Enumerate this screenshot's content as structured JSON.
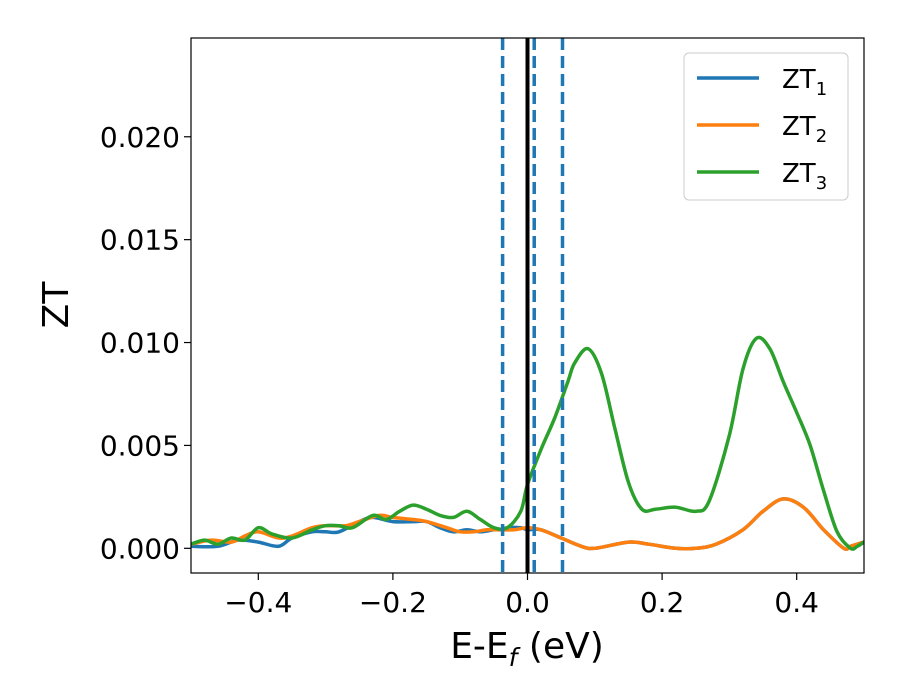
{
  "chart_data": {
    "type": "line",
    "xlabel": "E-E",
    "xlabel_sub": "f",
    "xlabel_unit": " (eV)",
    "ylabel": "ZT",
    "xlim": [
      -0.5,
      0.5
    ],
    "ylim": [
      -0.0012,
      0.0248
    ],
    "xticks": [
      -0.4,
      -0.2,
      0.0,
      0.2,
      0.4
    ],
    "xtick_labels": [
      "−0.4",
      "−0.2",
      "0.0",
      "0.2",
      "0.4"
    ],
    "yticks": [
      0.0,
      0.005,
      0.01,
      0.015,
      0.02
    ],
    "ytick_labels": [
      "0.000",
      "0.005",
      "0.010",
      "0.015",
      "0.020"
    ],
    "grid": false,
    "legend_position": "top-right",
    "vertical_lines": [
      {
        "x": -0.037,
        "style": "dashed",
        "color": "#1f77b4"
      },
      {
        "x": 0.0,
        "style": "solid",
        "color": "#000000"
      },
      {
        "x": 0.01,
        "style": "dashed",
        "color": "#1f77b4"
      },
      {
        "x": 0.052,
        "style": "dashed",
        "color": "#1f77b4"
      }
    ],
    "series": [
      {
        "name": "ZT",
        "sub": "1",
        "color": "#1f77b4",
        "x": [
          -0.5,
          -0.46,
          -0.43,
          -0.4,
          -0.37,
          -0.35,
          -0.32,
          -0.3,
          -0.28,
          -0.25,
          -0.23,
          -0.2,
          -0.17,
          -0.15,
          -0.13,
          -0.11,
          -0.09,
          -0.07,
          -0.05,
          -0.04,
          -0.03,
          -0.01,
          0.0,
          0.02,
          0.05,
          0.08,
          0.1,
          0.15,
          0.18,
          0.22,
          0.25,
          0.28,
          0.32,
          0.35,
          0.38,
          0.41,
          0.44,
          0.47,
          0.48,
          0.5
        ],
        "y": [
          0.0001,
          0.0001,
          0.0004,
          0.0003,
          0.0001,
          0.0005,
          0.0008,
          0.0008,
          0.0008,
          0.0013,
          0.0015,
          0.0013,
          0.0013,
          0.0013,
          0.001,
          0.0008,
          0.0009,
          0.0008,
          0.0009,
          0.0009,
          0.001,
          0.001,
          0.0009,
          0.0009,
          0.0005,
          0.0001,
          0.0,
          0.0003,
          0.0002,
          0.0,
          0.0,
          0.0002,
          0.0009,
          0.0018,
          0.0024,
          0.002,
          0.0009,
          0.0,
          0.0001,
          0.0003
        ]
      },
      {
        "name": "ZT",
        "sub": "2",
        "color": "#ff7f0e",
        "x": [
          -0.5,
          -0.47,
          -0.44,
          -0.42,
          -0.4,
          -0.37,
          -0.35,
          -0.32,
          -0.3,
          -0.27,
          -0.25,
          -0.22,
          -0.2,
          -0.17,
          -0.15,
          -0.12,
          -0.1,
          -0.08,
          -0.06,
          -0.04,
          -0.02,
          0.0,
          0.02,
          0.05,
          0.08,
          0.1,
          0.15,
          0.18,
          0.22,
          0.25,
          0.28,
          0.32,
          0.35,
          0.38,
          0.41,
          0.44,
          0.47,
          0.48,
          0.5
        ],
        "y": [
          0.0002,
          0.0004,
          0.0003,
          0.0006,
          0.0008,
          0.0005,
          0.0006,
          0.001,
          0.0011,
          0.0011,
          0.0013,
          0.0016,
          0.0015,
          0.0014,
          0.0013,
          0.001,
          0.0008,
          0.0008,
          0.0009,
          0.0009,
          0.0009,
          0.001,
          0.0009,
          0.0005,
          0.0001,
          0.0,
          0.0003,
          0.0002,
          0.0,
          0.0,
          0.0002,
          0.0009,
          0.0018,
          0.0024,
          0.002,
          0.0009,
          0.0,
          0.0001,
          0.0003
        ]
      },
      {
        "name": "ZT",
        "sub": "3",
        "color": "#2ca02c",
        "x": [
          -0.5,
          -0.48,
          -0.46,
          -0.44,
          -0.42,
          -0.4,
          -0.38,
          -0.35,
          -0.32,
          -0.3,
          -0.28,
          -0.26,
          -0.23,
          -0.21,
          -0.19,
          -0.17,
          -0.15,
          -0.13,
          -0.11,
          -0.09,
          -0.07,
          -0.05,
          -0.03,
          -0.01,
          0.0,
          0.02,
          0.04,
          0.06,
          0.07,
          0.09,
          0.11,
          0.13,
          0.15,
          0.17,
          0.19,
          0.22,
          0.25,
          0.27,
          0.3,
          0.32,
          0.34,
          0.36,
          0.38,
          0.4,
          0.42,
          0.44,
          0.46,
          0.48,
          0.49,
          0.5
        ],
        "y": [
          0.0002,
          0.0004,
          0.0002,
          0.0005,
          0.0004,
          0.001,
          0.0007,
          0.0005,
          0.0009,
          0.0011,
          0.0011,
          0.001,
          0.0016,
          0.0014,
          0.0018,
          0.0021,
          0.0019,
          0.0016,
          0.0015,
          0.0018,
          0.0014,
          0.001,
          0.001,
          0.0018,
          0.0031,
          0.0048,
          0.0063,
          0.0081,
          0.009,
          0.0097,
          0.0085,
          0.0058,
          0.0032,
          0.0019,
          0.0019,
          0.002,
          0.0018,
          0.0023,
          0.0055,
          0.0087,
          0.0102,
          0.0097,
          0.0081,
          0.0066,
          0.005,
          0.0028,
          0.0008,
          0.0,
          0.0001,
          0.0003
        ]
      }
    ]
  }
}
